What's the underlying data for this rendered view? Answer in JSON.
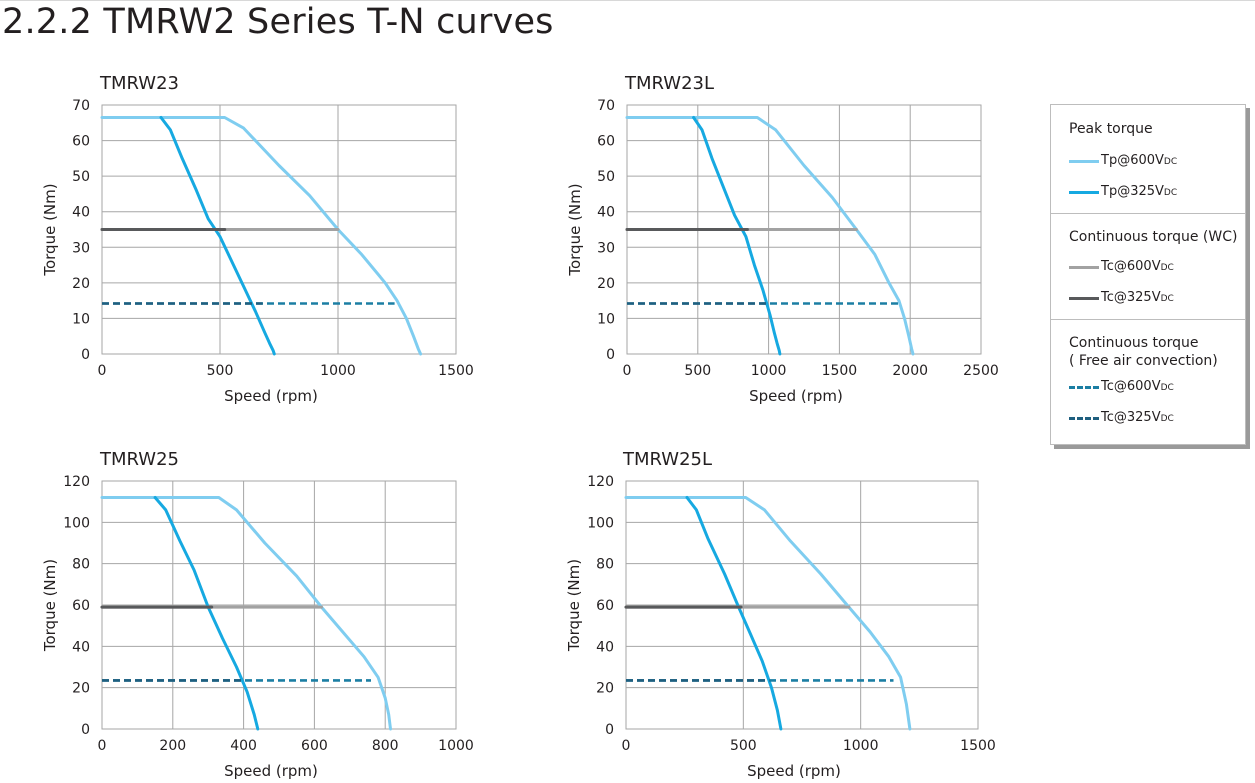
{
  "page": {
    "title": "2.2.2 TMRW2 Series T-N curves"
  },
  "colors": {
    "peak_600": "#7fcdf0",
    "peak_325": "#16a9e1",
    "cont_wc_600": "#a2a2a2",
    "cont_wc_325": "#58595b",
    "cont_free_600": "#1b7ea3",
    "cont_free_325": "#1f5f7f",
    "grid": "#a6a6a6"
  },
  "legend": {
    "groups": [
      {
        "title": "Peak torque",
        "items": [
          {
            "label": "Tp@600V",
            "sub": "DC",
            "series_key": "peak_600",
            "style": "solid"
          },
          {
            "label": "Tp@325V",
            "sub": "DC",
            "series_key": "peak_325",
            "style": "solid"
          }
        ]
      },
      {
        "title": "Continuous torque (WC)",
        "items": [
          {
            "label": "Tc@600V",
            "sub": "DC",
            "series_key": "cont_wc_600",
            "style": "solid"
          },
          {
            "label": "Tc@325V",
            "sub": "DC",
            "series_key": "cont_wc_325",
            "style": "solid"
          }
        ]
      },
      {
        "title": "Continuous torque\n( Free air convection)",
        "items": [
          {
            "label": "Tc@600V",
            "sub": "DC",
            "series_key": "cont_free_600",
            "style": "dashed"
          },
          {
            "label": "Tc@325V",
            "sub": "DC",
            "series_key": "cont_free_325",
            "style": "dashed"
          }
        ]
      }
    ]
  },
  "chart_data": [
    {
      "type": "line",
      "title": "TMRW23",
      "xlabel": "Speed (rpm)",
      "ylabel": "Torque (Nm)",
      "xlim": [
        0,
        1500
      ],
      "ylim": [
        0,
        70
      ],
      "xticks": [
        0,
        500,
        1000,
        1500
      ],
      "yticks": [
        0,
        10,
        20,
        30,
        40,
        50,
        60,
        70
      ],
      "grid": true,
      "legend": "shared-right",
      "series": [
        {
          "key": "peak_600",
          "x": [
            0,
            520,
            600,
            750,
            880,
            1000,
            1100,
            1200,
            1250,
            1290,
            1320,
            1340,
            1350
          ],
          "y": [
            66.5,
            66.5,
            63.5,
            53,
            44.5,
            35,
            28,
            20,
            15,
            10,
            5,
            1.5,
            0
          ]
        },
        {
          "key": "peak_325",
          "x": [
            250,
            290,
            340,
            400,
            450,
            500,
            550,
            600,
            650,
            690,
            710,
            725,
            730
          ],
          "y": [
            66.5,
            63,
            55,
            46,
            38,
            33,
            26,
            19,
            12,
            6,
            3,
            1,
            0
          ]
        },
        {
          "key": "cont_wc_600",
          "x": [
            0,
            1000
          ],
          "y": [
            35,
            35
          ]
        },
        {
          "key": "cont_wc_325",
          "x": [
            0,
            520
          ],
          "y": [
            35,
            35
          ]
        },
        {
          "key": "cont_free_600",
          "x": [
            0,
            1240
          ],
          "y": [
            14.2,
            14.2
          ]
        },
        {
          "key": "cont_free_325",
          "x": [
            0,
            680
          ],
          "y": [
            14.2,
            14.2
          ]
        }
      ]
    },
    {
      "type": "line",
      "title": "TMRW23L",
      "xlabel": "Speed (rpm)",
      "ylabel": "Torque (Nm)",
      "xlim": [
        0,
        2500
      ],
      "ylim": [
        0,
        70
      ],
      "xticks": [
        0,
        500,
        1000,
        1500,
        2000,
        2500
      ],
      "yticks": [
        0,
        10,
        20,
        30,
        40,
        50,
        60,
        70
      ],
      "grid": true,
      "legend": "shared-right",
      "series": [
        {
          "key": "peak_600",
          "x": [
            0,
            920,
            1050,
            1250,
            1450,
            1620,
            1750,
            1850,
            1920,
            1960,
            1990,
            2010,
            2020
          ],
          "y": [
            66.5,
            66.5,
            63,
            53,
            44,
            35,
            28,
            20,
            15,
            10,
            5,
            1.5,
            0
          ]
        },
        {
          "key": "peak_325",
          "x": [
            470,
            530,
            600,
            690,
            760,
            840,
            900,
            960,
            1010,
            1040,
            1060,
            1075,
            1080
          ],
          "y": [
            66.5,
            63,
            55,
            46,
            39,
            33,
            25,
            18,
            11,
            6,
            3,
            1,
            0
          ]
        },
        {
          "key": "cont_wc_600",
          "x": [
            0,
            1620
          ],
          "y": [
            35,
            35
          ]
        },
        {
          "key": "cont_wc_325",
          "x": [
            0,
            850
          ],
          "y": [
            35,
            35
          ]
        },
        {
          "key": "cont_free_600",
          "x": [
            0,
            1920
          ],
          "y": [
            14.2,
            14.2
          ]
        },
        {
          "key": "cont_free_325",
          "x": [
            0,
            1000
          ],
          "y": [
            14.2,
            14.2
          ]
        }
      ]
    },
    {
      "type": "line",
      "title": "TMRW25",
      "xlabel": "Speed (rpm)",
      "ylabel": "Torque (Nm)",
      "xlim": [
        0,
        1000
      ],
      "ylim": [
        0,
        120
      ],
      "xticks": [
        0,
        200,
        400,
        600,
        800,
        1000
      ],
      "yticks": [
        0,
        20,
        40,
        60,
        80,
        100,
        120
      ],
      "grid": true,
      "legend": "shared-right",
      "series": [
        {
          "key": "peak_600",
          "x": [
            0,
            330,
            380,
            460,
            550,
            620,
            680,
            740,
            780,
            800,
            810,
            815
          ],
          "y": [
            112,
            112,
            106,
            90,
            74,
            59,
            47,
            35,
            25,
            15,
            7,
            0
          ]
        },
        {
          "key": "peak_325",
          "x": [
            150,
            180,
            220,
            260,
            300,
            340,
            380,
            410,
            430,
            440
          ],
          "y": [
            112,
            106,
            91,
            77,
            59,
            44,
            30,
            18,
            7,
            0
          ]
        },
        {
          "key": "cont_wc_600",
          "x": [
            0,
            620
          ],
          "y": [
            59,
            59
          ]
        },
        {
          "key": "cont_wc_325",
          "x": [
            0,
            310
          ],
          "y": [
            59,
            59
          ]
        },
        {
          "key": "cont_free_600",
          "x": [
            0,
            760
          ],
          "y": [
            23.5,
            23.5
          ]
        },
        {
          "key": "cont_free_325",
          "x": [
            0,
            400
          ],
          "y": [
            23.5,
            23.5
          ]
        }
      ]
    },
    {
      "type": "line",
      "title": "TMRW25L",
      "xlabel": "Speed (rpm)",
      "ylabel": "Torque (Nm)",
      "xlim": [
        0,
        1500
      ],
      "ylim": [
        0,
        120
      ],
      "xticks": [
        0,
        500,
        1000,
        1500
      ],
      "yticks": [
        0,
        20,
        40,
        60,
        80,
        100,
        120
      ],
      "grid": true,
      "legend": "shared-right",
      "series": [
        {
          "key": "peak_600",
          "x": [
            0,
            510,
            590,
            700,
            830,
            950,
            1040,
            1120,
            1170,
            1195,
            1210
          ],
          "y": [
            112,
            112,
            106,
            91,
            75,
            59,
            47,
            35,
            25,
            12,
            0
          ]
        },
        {
          "key": "peak_325",
          "x": [
            260,
            300,
            350,
            420,
            480,
            530,
            580,
            620,
            645,
            660
          ],
          "y": [
            112,
            106,
            92,
            75,
            59,
            46,
            33,
            20,
            9,
            0
          ]
        },
        {
          "key": "cont_wc_600",
          "x": [
            0,
            950
          ],
          "y": [
            59,
            59
          ]
        },
        {
          "key": "cont_wc_325",
          "x": [
            0,
            490
          ],
          "y": [
            59,
            59
          ]
        },
        {
          "key": "cont_free_600",
          "x": [
            0,
            1140
          ],
          "y": [
            23.5,
            23.5
          ]
        },
        {
          "key": "cont_free_325",
          "x": [
            0,
            600
          ],
          "y": [
            23.5,
            23.5
          ]
        }
      ]
    }
  ]
}
